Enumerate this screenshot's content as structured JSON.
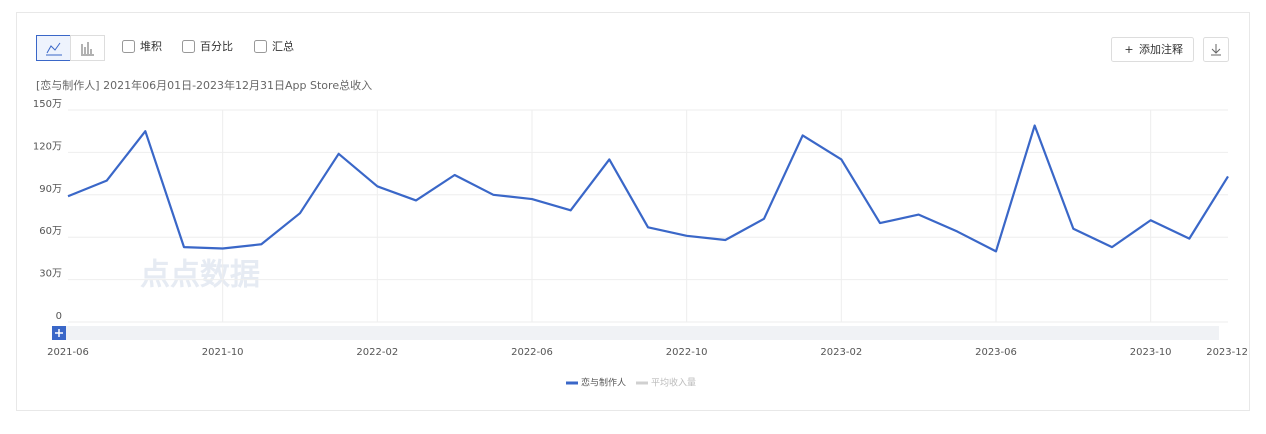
{
  "toolbar": {
    "checkboxes": [
      "堆积",
      "百分比",
      "汇总"
    ],
    "annotate_button": "添加注释"
  },
  "watermark": "点点数据",
  "chart_data": {
    "type": "line",
    "subtitle": "[恋与制作人] 2021年06月01日-2023年12月31日App Store总收入",
    "categories": [
      "2021-06",
      null,
      null,
      null,
      "2021-10",
      null,
      null,
      null,
      "2022-02",
      null,
      null,
      null,
      "2022-06",
      null,
      null,
      null,
      "2022-10",
      null,
      null,
      null,
      "2023-02",
      null,
      null,
      null,
      "2023-06",
      null,
      null,
      null,
      "2023-10",
      null,
      "2023-12"
    ],
    "series": [
      {
        "name": "恋与制作人",
        "color": "#3a67c8",
        "values": [
          89,
          100,
          135,
          53,
          52,
          55,
          77,
          119,
          96,
          86,
          104,
          90,
          87,
          79,
          115,
          67,
          61,
          58,
          73,
          132,
          115,
          70,
          76,
          64,
          50,
          139,
          66,
          53,
          72,
          59,
          103
        ]
      },
      {
        "name": "平均收入量",
        "color": "#d0d0d0",
        "values": [
          null,
          null,
          null,
          null,
          null,
          null,
          null,
          null,
          null,
          null,
          null,
          null,
          null,
          null,
          null,
          null,
          null,
          null,
          null,
          null,
          null,
          null,
          null,
          null,
          null,
          null,
          null,
          null,
          null,
          null,
          null
        ]
      }
    ],
    "ylim": [
      0,
      150
    ],
    "yticks": [
      0,
      {
        "value": 30,
        "label": "30万"
      },
      {
        "value": 60,
        "label": "60万"
      },
      {
        "value": 90,
        "label": "90万"
      },
      {
        "value": 120,
        "label": "120万"
      },
      {
        "value": 150,
        "label": "150万"
      }
    ],
    "grid": true
  }
}
